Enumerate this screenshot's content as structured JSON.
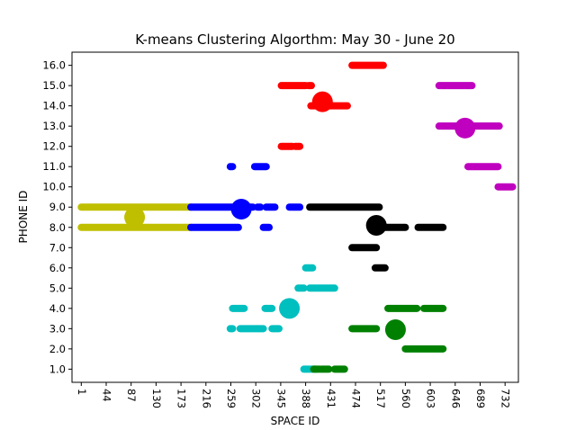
{
  "chart_data": {
    "type": "scatter",
    "title": "K-means Clustering Algorthm: May 30 - June 20",
    "xlabel": "SPACE ID",
    "ylabel": "PHONE ID",
    "xlim": [
      -15,
      755
    ],
    "ylim": [
      0.35,
      16.65
    ],
    "xticks": [
      1,
      44,
      87,
      130,
      173,
      216,
      259,
      302,
      345,
      388,
      431,
      474,
      517,
      560,
      603,
      646,
      689,
      732
    ],
    "yticks": [
      1.0,
      2.0,
      3.0,
      4.0,
      5.0,
      6.0,
      7.0,
      8.0,
      9.0,
      10.0,
      11.0,
      12.0,
      13.0,
      14.0,
      15.0,
      16.0
    ],
    "xtick_rotation": -90,
    "grid": false,
    "legend": "none",
    "clusters": [
      {
        "color": "#bfbf00",
        "centroid": [
          93,
          8.5
        ],
        "segments": [
          [
            1,
            190,
            9.0
          ],
          [
            1,
            190,
            8.0
          ]
        ]
      },
      {
        "color": "#0000ff",
        "centroid": [
          277,
          8.9
        ],
        "segments": [
          [
            190,
            285,
            9.0
          ],
          [
            292,
            297,
            9.0
          ],
          [
            305,
            310,
            9.0
          ],
          [
            320,
            335,
            9.0
          ],
          [
            360,
            378,
            9.0
          ],
          [
            190,
            272,
            8.0
          ],
          [
            315,
            325,
            8.0
          ],
          [
            258,
            262,
            11.0
          ],
          [
            300,
            320,
            11.0
          ]
        ]
      },
      {
        "color": "#000000",
        "centroid": [
          510,
          8.1
        ],
        "segments": [
          [
            395,
            515,
            9.0
          ],
          [
            510,
            560,
            8.0
          ],
          [
            582,
            625,
            8.0
          ],
          [
            468,
            510,
            7.0
          ],
          [
            508,
            525,
            6.0
          ]
        ]
      },
      {
        "color": "#ff0000",
        "centroid": [
          417,
          14.2
        ],
        "segments": [
          [
            468,
            522,
            16.0
          ],
          [
            346,
            388,
            15.0
          ],
          [
            393,
            398,
            15.0
          ],
          [
            397,
            460,
            14.0
          ],
          [
            346,
            365,
            12.0
          ],
          [
            370,
            378,
            12.0
          ]
        ]
      },
      {
        "color": "#bf00bf",
        "centroid": [
          663,
          12.9
        ],
        "segments": [
          [
            618,
            675,
            15.0
          ],
          [
            618,
            722,
            13.0
          ],
          [
            668,
            720,
            11.0
          ],
          [
            720,
            745,
            10.0
          ]
        ]
      },
      {
        "color": "#00bfbf",
        "centroid": [
          360,
          4.0
        ],
        "segments": [
          [
            388,
            400,
            6.0
          ],
          [
            375,
            385,
            5.0
          ],
          [
            395,
            438,
            5.0
          ],
          [
            262,
            282,
            4.0
          ],
          [
            318,
            330,
            4.0
          ],
          [
            258,
            262,
            3.0
          ],
          [
            275,
            315,
            3.0
          ],
          [
            330,
            342,
            3.0
          ],
          [
            385,
            405,
            1.0
          ]
        ]
      },
      {
        "color": "#008000",
        "centroid": [
          543,
          2.95
        ],
        "segments": [
          [
            530,
            580,
            4.0
          ],
          [
            592,
            625,
            4.0
          ],
          [
            468,
            510,
            3.0
          ],
          [
            560,
            625,
            2.0
          ],
          [
            402,
            412,
            1.0
          ],
          [
            415,
            428,
            1.0
          ],
          [
            438,
            455,
            1.0
          ]
        ]
      }
    ]
  }
}
